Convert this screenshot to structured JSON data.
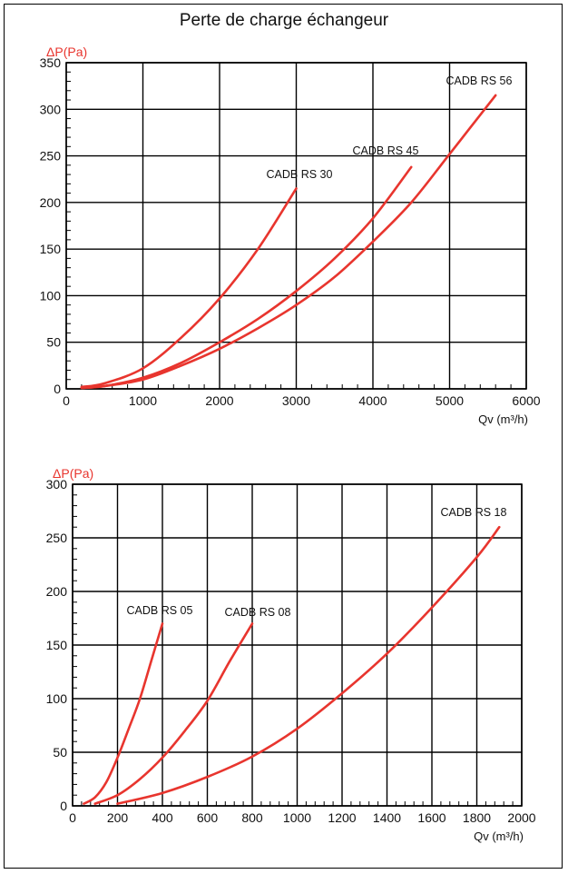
{
  "page": {
    "title": "Perte de charge échangeur"
  },
  "colors": {
    "curve": "#e8352e",
    "ylabel": "#e8352e",
    "grid": "#000000"
  },
  "chart_data": [
    {
      "type": "line",
      "title": "Perte de charge échangeur",
      "ylabel": "ΔP(Pa)",
      "xlabel": "Qv (m³/h)",
      "xlim": [
        0,
        6000
      ],
      "ylim": [
        0,
        350
      ],
      "xticks": [
        0,
        1000,
        2000,
        3000,
        4000,
        5000,
        6000
      ],
      "yticks": [
        0,
        50,
        100,
        150,
        200,
        250,
        300,
        350
      ],
      "grid": true,
      "series": [
        {
          "name": "CADB RS 30",
          "x": [
            200,
            500,
            1000,
            1500,
            2000,
            2500,
            3000
          ],
          "y": [
            2,
            6,
            22,
            55,
            97,
            150,
            215
          ]
        },
        {
          "name": "CADB RS 45",
          "x": [
            200,
            500,
            1000,
            1500,
            2000,
            2500,
            3000,
            3500,
            4000,
            4500
          ],
          "y": [
            1,
            3,
            12,
            28,
            50,
            75,
            105,
            140,
            183,
            238
          ]
        },
        {
          "name": "CADB RS 56",
          "x": [
            200,
            500,
            1000,
            1500,
            2000,
            2500,
            3000,
            3500,
            4000,
            4500,
            5000,
            5600
          ],
          "y": [
            1,
            3,
            10,
            25,
            43,
            65,
            90,
            120,
            158,
            200,
            252,
            315
          ]
        }
      ]
    },
    {
      "type": "line",
      "title": "",
      "ylabel": "ΔP(Pa)",
      "xlabel": "Qv (m³/h)",
      "xlim": [
        0,
        2000
      ],
      "ylim": [
        0,
        300
      ],
      "xticks": [
        0,
        200,
        400,
        600,
        800,
        1000,
        1200,
        1400,
        1600,
        1800,
        2000
      ],
      "yticks": [
        0,
        50,
        100,
        150,
        200,
        250,
        300
      ],
      "grid": true,
      "series": [
        {
          "name": "CADB RS 05",
          "x": [
            50,
            100,
            150,
            200,
            250,
            300,
            350,
            400
          ],
          "y": [
            2,
            8,
            22,
            45,
            72,
            100,
            135,
            170
          ]
        },
        {
          "name": "CADB RS 08",
          "x": [
            100,
            200,
            300,
            400,
            500,
            600,
            700,
            800
          ],
          "y": [
            2,
            10,
            25,
            45,
            70,
            98,
            135,
            170
          ]
        },
        {
          "name": "CADB RS 18",
          "x": [
            200,
            400,
            600,
            800,
            1000,
            1200,
            1400,
            1600,
            1800,
            1900
          ],
          "y": [
            2,
            12,
            27,
            46,
            72,
            105,
            142,
            185,
            232,
            260
          ]
        }
      ]
    }
  ]
}
